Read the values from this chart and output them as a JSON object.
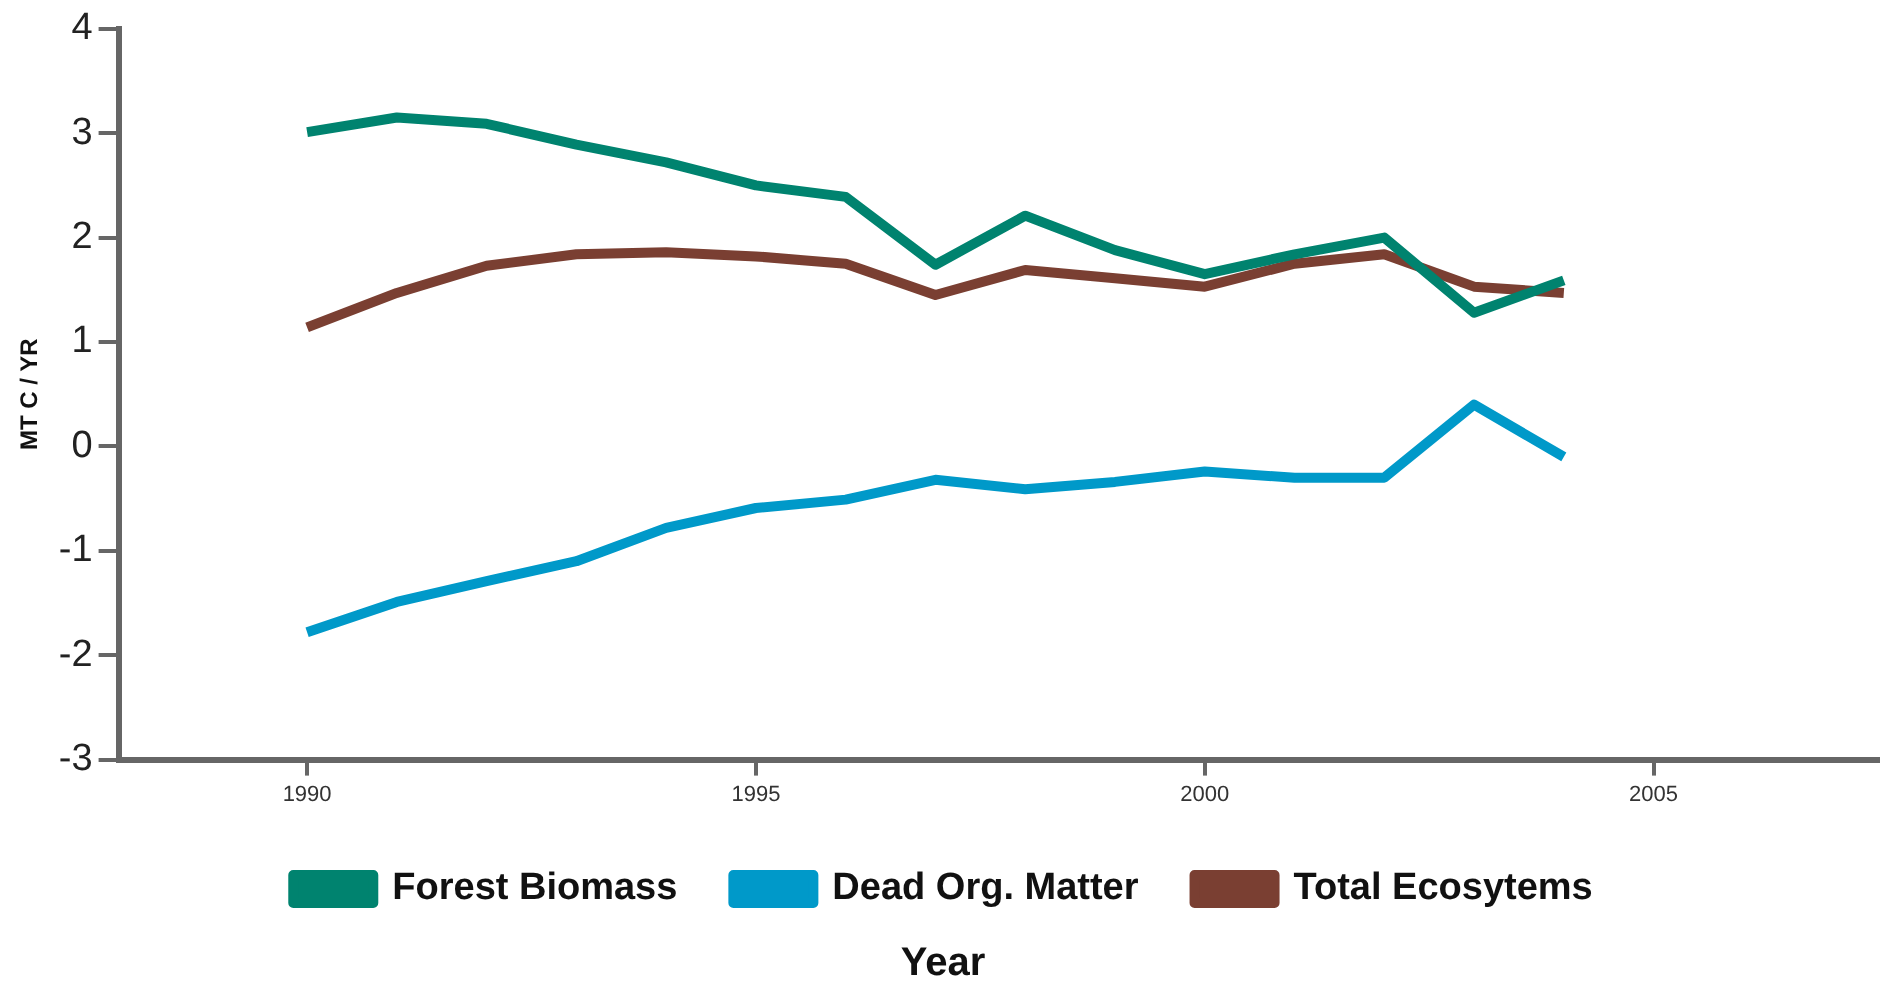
{
  "chart_data": {
    "type": "line",
    "xlabel": "Year",
    "ylabel": "MT C / YR",
    "x": [
      1990,
      1991,
      1992,
      1993,
      1994,
      1995,
      1996,
      1997,
      1998,
      1999,
      2000,
      2001,
      2002,
      2003,
      2004
    ],
    "series": [
      {
        "name": "Forest Biomass",
        "color": "#00836f",
        "values": [
          3.01,
          3.15,
          3.09,
          2.89,
          2.72,
          2.5,
          2.39,
          1.74,
          2.21,
          1.88,
          1.65,
          1.84,
          2.0,
          1.28,
          1.59
        ]
      },
      {
        "name": "Dead Org. Matter",
        "color": "#0099c9",
        "values": [
          -1.78,
          -1.49,
          -1.29,
          -1.1,
          -0.78,
          -0.59,
          -0.51,
          -0.32,
          -0.41,
          -0.34,
          -0.24,
          -0.3,
          -0.3,
          0.4,
          -0.1
        ]
      },
      {
        "name": "Total Ecosytems",
        "color": "#7a3f32",
        "values": [
          1.14,
          1.47,
          1.73,
          1.84,
          1.86,
          1.82,
          1.75,
          1.45,
          1.69,
          1.61,
          1.53,
          1.75,
          1.84,
          1.53,
          1.47
        ]
      }
    ],
    "xlim": [
      1987.9,
      2007.5
    ],
    "xticks": [
      1990,
      1995,
      2000,
      2005
    ],
    "ylim": [
      -3,
      4
    ],
    "yticks": [
      -3,
      -2,
      -1,
      0,
      1,
      2,
      3,
      4
    ],
    "grid": false,
    "legend": "bottom",
    "marker": "none",
    "line_style": "solid"
  }
}
